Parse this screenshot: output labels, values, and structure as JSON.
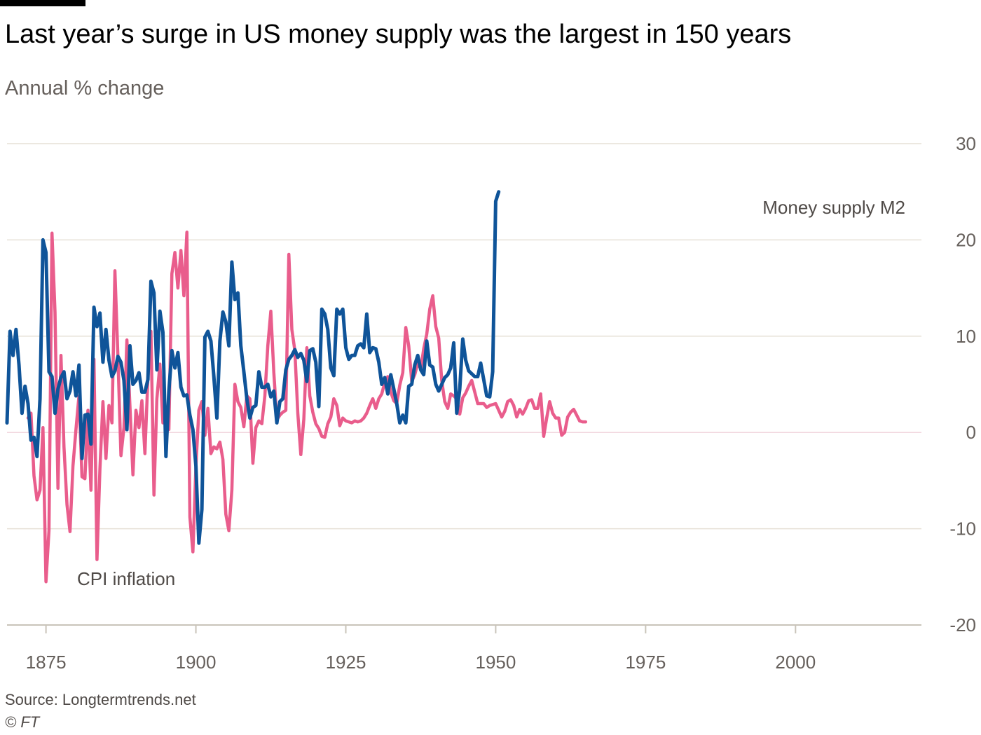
{
  "header": {
    "title": "Last year’s surge in US money supply was the largest in 150 years",
    "subtitle": "Annual % change"
  },
  "footer": {
    "source": "Source: Longtermtrends.net",
    "credit": "© FT"
  },
  "colors": {
    "m2": "#0f5499",
    "cpi": "#e95d8c",
    "grid": "#e6e0d6",
    "zero_grid": "#f2d6de",
    "axis": "#c9c4ba"
  },
  "chart_data": {
    "type": "line",
    "title": "Last year’s surge in US money supply was the largest in 150 years",
    "ylabel": "Annual % change",
    "xlabel": "",
    "xlim": [
      1868.5,
      2021
    ],
    "ylim": [
      -20,
      30
    ],
    "yticks": [
      30,
      20,
      10,
      0,
      -10,
      -20
    ],
    "xticks": [
      1875,
      1900,
      1925,
      1950,
      1975,
      2000
    ],
    "grid": true,
    "annotations": [
      {
        "text": "Money supply M2",
        "series": "Money supply M2"
      },
      {
        "text": "CPI inflation",
        "series": "CPI inflation"
      }
    ],
    "series": [
      {
        "name": "Money supply M2",
        "x_start": 1868.5,
        "x_step": 0.5,
        "values": [
          1.0,
          10.5,
          8.0,
          10.7,
          7.0,
          2.0,
          4.8,
          3.0,
          -0.8,
          -0.5,
          -2.5,
          3.5,
          20.0,
          18.7,
          6.3,
          5.8,
          2.0,
          4.5,
          5.7,
          6.3,
          3.5,
          4.3,
          6.3,
          3.8,
          7.0,
          -2.7,
          1.8,
          1.9,
          -1.2,
          13.0,
          11.0,
          12.4,
          7.3,
          10.7,
          7.5,
          5.8,
          6.4,
          7.9,
          7.3,
          5.4,
          0.3,
          9.0,
          5.0,
          5.4,
          6.2,
          4.2,
          4.2,
          5.5,
          15.7,
          14.5,
          6.5,
          12.6,
          10.4,
          -2.5,
          4.3,
          8.5,
          6.7,
          8.3,
          4.7,
          3.8,
          3.9,
          1.8,
          0.3,
          -3.5,
          -11.5,
          -8.0,
          9.9,
          10.5,
          9.5,
          5.8,
          1.5,
          9.5,
          12.5,
          11.5,
          9.0,
          17.7,
          13.8,
          14.5,
          9.0,
          6.3,
          3.5,
          1.5,
          2.6,
          2.8,
          6.3,
          4.7,
          4.7,
          5.0,
          3.7,
          4.3,
          1.0,
          3.2,
          3.5,
          6.5,
          7.6,
          8.0,
          8.6,
          7.8,
          8.2,
          7.5,
          5.3,
          8.5,
          8.7,
          7.3,
          2.7,
          12.8,
          12.3,
          10.7,
          6.7,
          5.9,
          12.8,
          12.3,
          12.8,
          8.8,
          7.6,
          8.0,
          8.0,
          9.0,
          9.2,
          8.8,
          12.3,
          8.3,
          8.8,
          8.7,
          7.3,
          5.0,
          5.7,
          4.0,
          6.0,
          4.5,
          3.0,
          1.0,
          1.8,
          1.0,
          4.8,
          5.0,
          7.0,
          8.0,
          6.5,
          6.0,
          9.5,
          7.0,
          6.8,
          5.0,
          4.3,
          5.0,
          5.7,
          6.0,
          6.7,
          9.3,
          2.0,
          4.5,
          9.7,
          7.5,
          6.4,
          6.1,
          5.8,
          5.8,
          7.2,
          5.5,
          3.8,
          3.7,
          6.3,
          24.0,
          25.0
        ]
      },
      {
        "name": "CPI inflation",
        "x_start": 1872,
        "x_step": 0.5,
        "values": [
          1.5,
          2.0,
          -4.5,
          -7.0,
          -6.0,
          0.5,
          -15.5,
          -10.2,
          20.7,
          12.5,
          -5.8,
          8.0,
          -1.5,
          -7.5,
          -10.3,
          -3.5,
          0.3,
          3.8,
          -4.6,
          -4.8,
          2.3,
          -6.0,
          7.6,
          -13.2,
          -3.8,
          3.2,
          -2.7,
          2.8,
          1.0,
          16.8,
          7.8,
          -2.4,
          0.5,
          9.6,
          2.8,
          -4.4,
          2.3,
          0.5,
          3.3,
          -2.2,
          5.7,
          10.5,
          -6.5,
          3.5,
          7.1,
          1.0,
          1.0,
          0.3,
          16.5,
          18.7,
          15.0,
          18.9,
          14.2,
          20.8,
          -8.8,
          -12.4,
          -3.5,
          2.3,
          3.2,
          -0.3,
          2.5,
          -2.2,
          -1.5,
          -1.7,
          -1.0,
          -2.8,
          -8.5,
          -10.2,
          -6.0,
          5.0,
          3.2,
          2.6,
          0.6,
          3.8,
          3.5,
          -3.2,
          0.5,
          1.2,
          0.9,
          3.8,
          9.0,
          12.6,
          6.2,
          1.3,
          1.8,
          2.1,
          2.3,
          18.5,
          10.7,
          8.5,
          2.0,
          -2.3,
          1.4,
          8.8,
          3.8,
          2.1,
          0.9,
          0.4,
          -0.4,
          -0.5,
          0.9,
          1.6,
          3.5,
          2.8,
          0.7,
          1.5,
          1.2,
          1.1,
          1.0,
          1.2,
          1.1,
          1.2,
          1.5,
          2.0,
          2.8,
          3.5,
          2.5,
          3.5,
          4.0,
          5.2,
          5.8,
          4.2,
          3.3,
          3.0,
          4.9,
          6.2,
          10.9,
          9.0,
          5.3,
          6.0,
          7.2,
          6.6,
          8.7,
          10.2,
          12.8,
          14.2,
          11.0,
          9.8,
          5.4,
          3.2,
          2.5,
          4.0,
          3.8,
          3.5,
          1.9,
          3.6,
          4.1,
          4.8,
          5.4,
          4.2,
          3.0,
          3.0,
          3.0,
          2.6,
          2.8,
          2.9,
          3.0,
          2.3,
          1.6,
          2.2,
          3.2,
          3.4,
          2.8,
          1.6,
          2.4,
          1.9,
          2.5,
          3.3,
          3.4,
          2.5,
          2.5,
          4.0,
          -0.4,
          1.5,
          3.2,
          2.0,
          1.5,
          1.5,
          -0.3,
          0.0,
          1.6,
          2.1,
          2.4,
          1.8,
          1.2,
          1.1,
          1.1
        ]
      }
    ]
  }
}
